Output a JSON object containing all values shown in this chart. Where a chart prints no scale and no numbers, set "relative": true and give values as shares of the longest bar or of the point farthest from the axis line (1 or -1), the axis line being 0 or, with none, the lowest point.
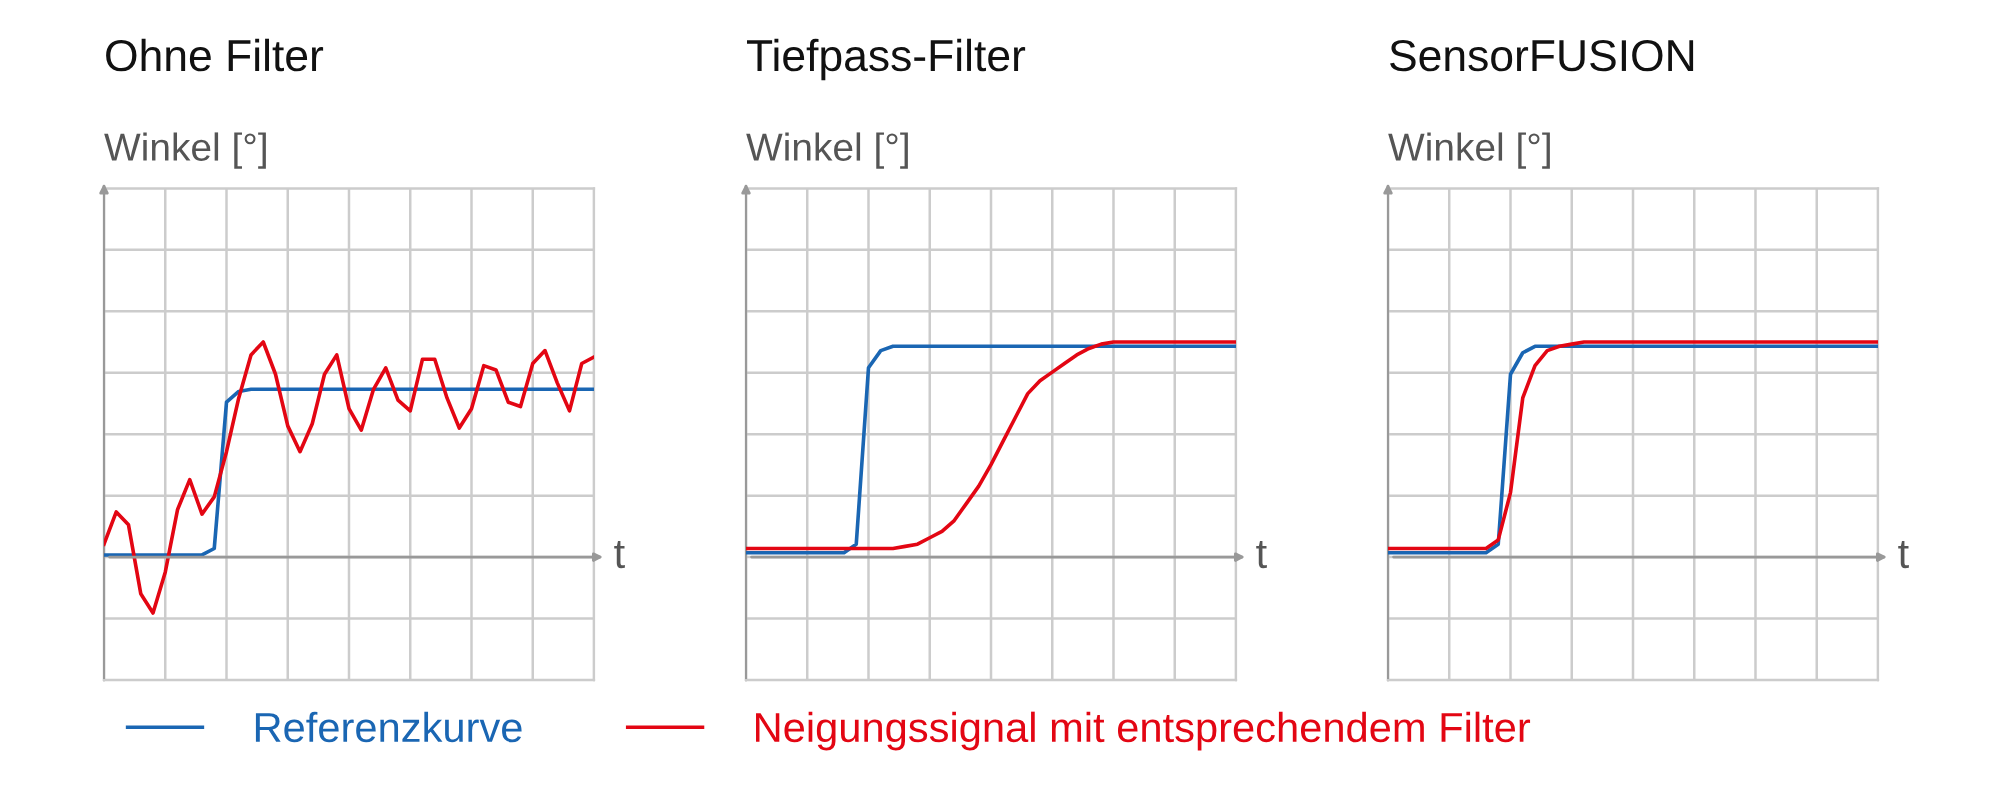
{
  "chart_data": [
    {
      "type": "line",
      "title": "Ohne Filter",
      "ylabel": "Winkel [°]",
      "xlabel": "t",
      "relative": true,
      "grid": true,
      "legend": "bottom",
      "categories": [
        null,
        null,
        null,
        null,
        null,
        null,
        null,
        null,
        null,
        null,
        null,
        null,
        null,
        null,
        null,
        null,
        null,
        null,
        null,
        null,
        null,
        null,
        null,
        null,
        null,
        null,
        null,
        null,
        null,
        null,
        null,
        null,
        null,
        null,
        null,
        null,
        null,
        null,
        null,
        null,
        null
      ],
      "series": [
        {
          "name": "Referenzkurve",
          "color": "#1a66b3",
          "values": [
            0.01,
            0.01,
            0.01,
            0.01,
            0.01,
            0.01,
            0.01,
            0.01,
            0.01,
            0.04,
            0.72,
            0.77,
            0.78,
            0.78,
            0.78,
            0.78,
            0.78,
            0.78,
            0.78,
            0.78,
            0.78,
            0.78,
            0.78,
            0.78,
            0.78,
            0.78,
            0.78,
            0.78,
            0.78,
            0.78,
            0.78,
            0.78,
            0.78,
            0.78,
            0.78,
            0.78,
            0.78,
            0.78,
            0.78,
            0.78,
            0.78
          ]
        },
        {
          "name": "Neigungssignal mit entsprechendem Filter",
          "color": "#e30613",
          "values": [
            0.06,
            0.21,
            0.15,
            -0.17,
            -0.26,
            -0.07,
            0.22,
            0.36,
            0.2,
            0.28,
            0.49,
            0.74,
            0.94,
            1,
            0.85,
            0.61,
            0.49,
            0.62,
            0.85,
            0.94,
            0.69,
            0.59,
            0.78,
            0.88,
            0.73,
            0.68,
            0.92,
            0.92,
            0.74,
            0.6,
            0.69,
            0.89,
            0.87,
            0.72,
            0.7,
            0.9,
            0.96,
            0.81,
            0.68,
            0.9,
            0.93
          ]
        }
      ]
    },
    {
      "type": "line",
      "title": "Tiefpass-Filter",
      "ylabel": "Winkel [°]",
      "xlabel": "t",
      "relative": true,
      "grid": true,
      "categories": [
        null,
        null,
        null,
        null,
        null,
        null,
        null,
        null,
        null,
        null,
        null,
        null,
        null,
        null,
        null,
        null,
        null,
        null,
        null,
        null,
        null,
        null,
        null,
        null,
        null,
        null,
        null,
        null,
        null,
        null,
        null,
        null,
        null,
        null,
        null,
        null,
        null,
        null,
        null,
        null,
        null
      ],
      "series": [
        {
          "color": "#1a66b3",
          "values": [
            0.02,
            0.02,
            0.02,
            0.02,
            0.02,
            0.02,
            0.02,
            0.02,
            0.02,
            0.06,
            0.88,
            0.96,
            0.98,
            0.98,
            0.98,
            0.98,
            0.98,
            0.98,
            0.98,
            0.98,
            0.98,
            0.98,
            0.98,
            0.98,
            0.98,
            0.98,
            0.98,
            0.98,
            0.98,
            0.98,
            0.98,
            0.98,
            0.98,
            0.98,
            0.98,
            0.98,
            0.98,
            0.98,
            0.98,
            0.98,
            0.98
          ]
        },
        {
          "color": "#e30613",
          "values": [
            0.04,
            0.04,
            0.04,
            0.04,
            0.04,
            0.04,
            0.04,
            0.04,
            0.04,
            0.04,
            0.04,
            0.04,
            0.04,
            0.05,
            0.06,
            0.09,
            0.12,
            0.17,
            0.25,
            0.33,
            0.43,
            0.54,
            0.65,
            0.76,
            0.82,
            0.86,
            0.9,
            0.94,
            0.97,
            0.99,
            1,
            1,
            1,
            1,
            1,
            1,
            1,
            1,
            1,
            1,
            1
          ]
        }
      ]
    },
    {
      "type": "line",
      "title": "SensorFUSION",
      "ylabel": "Winkel [°]",
      "xlabel": "t",
      "relative": true,
      "grid": true,
      "categories": [
        null,
        null,
        null,
        null,
        null,
        null,
        null,
        null,
        null,
        null,
        null,
        null,
        null,
        null,
        null,
        null,
        null,
        null,
        null,
        null,
        null,
        null,
        null,
        null,
        null,
        null,
        null,
        null,
        null,
        null,
        null,
        null,
        null,
        null,
        null,
        null,
        null,
        null,
        null,
        null,
        null
      ],
      "series": [
        {
          "color": "#1a66b3",
          "values": [
            0.02,
            0.02,
            0.02,
            0.02,
            0.02,
            0.02,
            0.02,
            0.02,
            0.02,
            0.06,
            0.85,
            0.95,
            0.98,
            0.98,
            0.98,
            0.98,
            0.98,
            0.98,
            0.98,
            0.98,
            0.98,
            0.98,
            0.98,
            0.98,
            0.98,
            0.98,
            0.98,
            0.98,
            0.98,
            0.98,
            0.98,
            0.98,
            0.98,
            0.98,
            0.98,
            0.98,
            0.98,
            0.98,
            0.98,
            0.98,
            0.98
          ]
        },
        {
          "color": "#e30613",
          "values": [
            0.04,
            0.04,
            0.04,
            0.04,
            0.04,
            0.04,
            0.04,
            0.04,
            0.04,
            0.08,
            0.3,
            0.74,
            0.89,
            0.96,
            0.98,
            0.99,
            1,
            1,
            1,
            1,
            1,
            1,
            1,
            1,
            1,
            1,
            1,
            1,
            1,
            1,
            1,
            1,
            1,
            1,
            1,
            1,
            1,
            1,
            1,
            1,
            1
          ]
        }
      ]
    }
  ]
}
